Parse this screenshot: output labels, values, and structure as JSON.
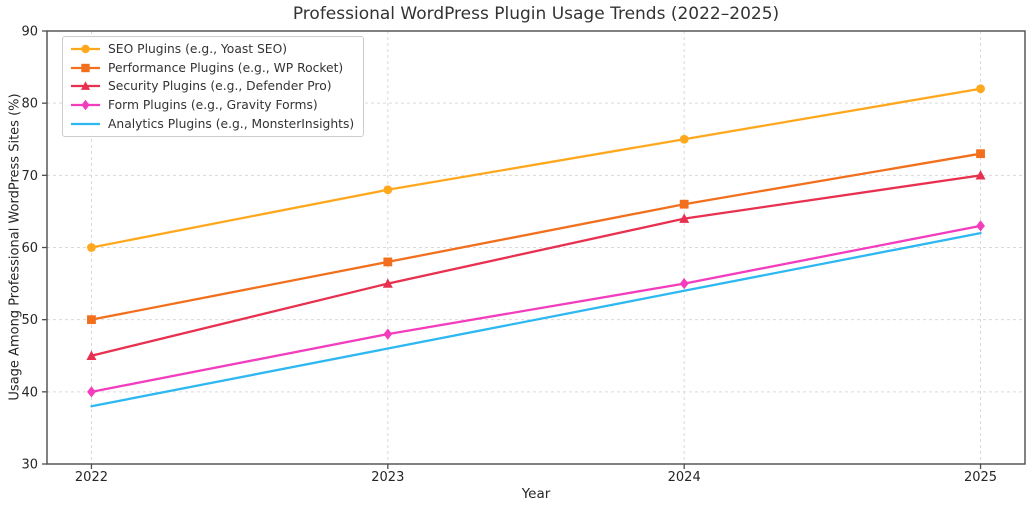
{
  "chart_data": {
    "type": "line",
    "title": "Professional WordPress Plugin Usage Trends (2022–2025)",
    "xlabel": "Year",
    "ylabel": "Usage Among Professional WordPress Sites (%)",
    "categories": [
      2022,
      2023,
      2024,
      2025
    ],
    "xlim": [
      2021.85,
      2025.15
    ],
    "ylim": [
      30,
      90
    ],
    "yticks": [
      30,
      40,
      50,
      60,
      70,
      80,
      90
    ],
    "grid": true,
    "grid_style": "dashed",
    "legend_position": "upper-left",
    "series": [
      {
        "name": "SEO Plugins (e.g., Yoast SEO)",
        "color": "#FFA81E",
        "marker": "circle",
        "values": [
          60,
          68,
          75,
          82
        ]
      },
      {
        "name": "Performance Plugins (e.g., WP Rocket)",
        "color": "#F2701D",
        "marker": "square",
        "values": [
          50,
          58,
          66,
          73
        ]
      },
      {
        "name": "Security Plugins (e.g., Defender Pro)",
        "color": "#E8304F",
        "marker": "triangle",
        "values": [
          45,
          55,
          64,
          70
        ]
      },
      {
        "name": "Form Plugins (e.g., Gravity Forms)",
        "color": "#F23EBE",
        "marker": "diamond",
        "values": [
          40,
          48,
          55,
          63
        ]
      },
      {
        "name": "Analytics Plugins (e.g., MonsterInsights)",
        "color": "#2EB8F2",
        "marker": "none",
        "values": [
          38,
          46,
          54,
          62
        ]
      }
    ],
    "colors": {
      "grid": "#d9d9d9",
      "spine": "#4d4d4d",
      "tick_text": "#262626",
      "title_text": "#333333"
    }
  }
}
